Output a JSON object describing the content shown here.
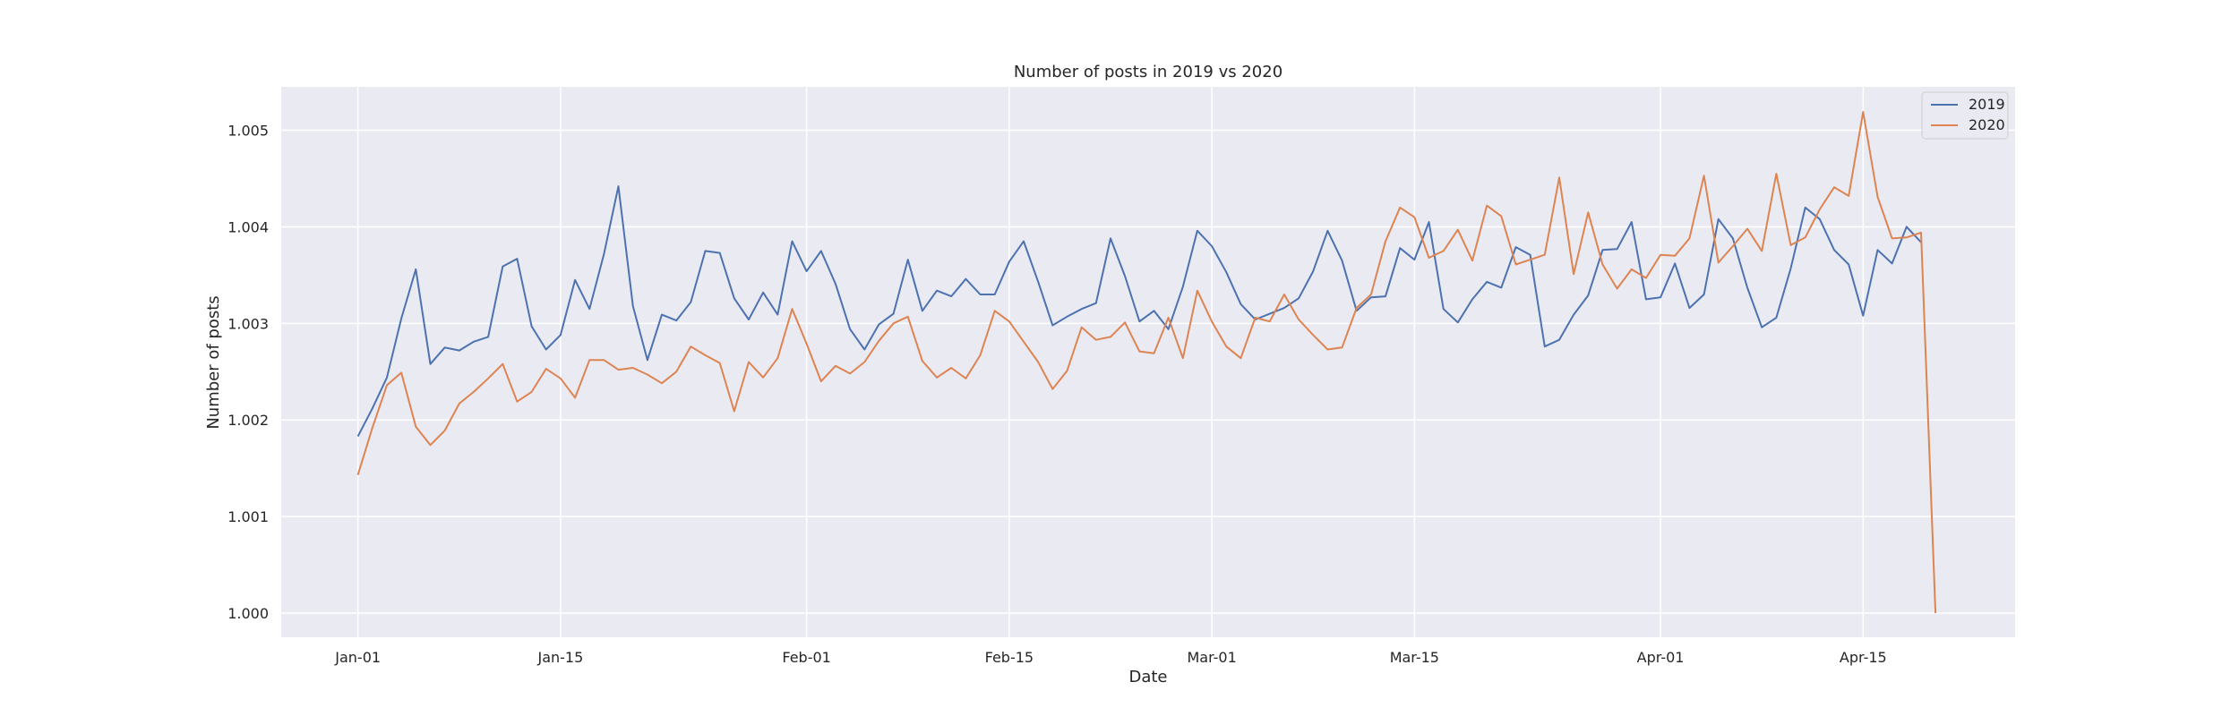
{
  "chart_data": {
    "type": "line",
    "title": "Number of posts in 2019 vs 2020",
    "xlabel": "Date",
    "ylabel": "Number of posts",
    "x_start": "Jan-01",
    "x_ticks": [
      {
        "day": 0,
        "label": "Jan-01"
      },
      {
        "day": 14,
        "label": "Jan-15"
      },
      {
        "day": 31,
        "label": "Feb-01"
      },
      {
        "day": 45,
        "label": "Feb-15"
      },
      {
        "day": 59,
        "label": "Mar-01"
      },
      {
        "day": 73,
        "label": "Mar-15"
      },
      {
        "day": 90,
        "label": "Apr-01"
      },
      {
        "day": 104,
        "label": "Apr-15"
      }
    ],
    "y_ticks": [
      "1.000",
      "1.001",
      "1.002",
      "1.003",
      "1.004",
      "1.005"
    ],
    "ylim": [
      0.99975,
      1.00545
    ],
    "xlim": [
      -5.3,
      114.5
    ],
    "grid": true,
    "legend_position": "top-right",
    "series": [
      {
        "name": "2019",
        "color": "#4c72b0",
        "values": [
          1.00183,
          1.00212,
          1.00244,
          1.00305,
          1.00356,
          1.00258,
          1.00275,
          1.00272,
          1.00281,
          1.00286,
          1.00359,
          1.00367,
          1.00297,
          1.00273,
          1.00288,
          1.00345,
          1.00315,
          1.00372,
          1.00442,
          1.00318,
          1.00262,
          1.00309,
          1.00303,
          1.00322,
          1.00375,
          1.00373,
          1.00326,
          1.00304,
          1.00332,
          1.00309,
          1.00385,
          1.00354,
          1.00375,
          1.00341,
          1.00294,
          1.00273,
          1.00299,
          1.0031,
          1.00366,
          1.00313,
          1.00334,
          1.00328,
          1.00346,
          1.0033,
          1.0033,
          1.00364,
          1.00385,
          1.00343,
          1.00298,
          1.00307,
          1.00315,
          1.00321,
          1.00388,
          1.00349,
          1.00302,
          1.00313,
          1.00294,
          1.00338,
          1.00396,
          1.0038,
          1.00353,
          1.0032,
          1.00304,
          1.0031,
          1.00316,
          1.00326,
          1.00354,
          1.00396,
          1.00365,
          1.00313,
          1.00327,
          1.00328,
          1.00378,
          1.00366,
          1.00405,
          1.00315,
          1.00301,
          1.00325,
          1.00343,
          1.00337,
          1.00379,
          1.00371,
          1.00276,
          1.00283,
          1.00309,
          1.00329,
          1.00376,
          1.00377,
          1.00405,
          1.00325,
          1.00327,
          1.00362,
          1.00316,
          1.0033,
          1.00408,
          1.00388,
          1.00337,
          1.00296,
          1.00306,
          1.00357,
          1.0042,
          1.00408,
          1.00376,
          1.00361,
          1.00308,
          1.00376,
          1.00362,
          1.004,
          1.00384
        ]
      },
      {
        "name": "2020",
        "color": "#dd8452",
        "values": [
          1.00143,
          1.00192,
          1.00236,
          1.00249,
          1.00193,
          1.00174,
          1.00189,
          1.00217,
          1.00229,
          1.00243,
          1.00258,
          1.00219,
          1.00229,
          1.00253,
          1.00243,
          1.00223,
          1.00262,
          1.00262,
          1.00252,
          1.00254,
          1.00247,
          1.00238,
          1.0025,
          1.00276,
          1.00267,
          1.00259,
          1.00209,
          1.0026,
          1.00244,
          1.00264,
          1.00315,
          1.00279,
          1.0024,
          1.00256,
          1.00248,
          1.0026,
          1.00282,
          1.003,
          1.00307,
          1.00261,
          1.00244,
          1.00254,
          1.00243,
          1.00267,
          1.00313,
          1.00302,
          1.00281,
          1.0026,
          1.00232,
          1.00251,
          1.00296,
          1.00283,
          1.00286,
          1.00301,
          1.00271,
          1.00269,
          1.00306,
          1.00264,
          1.00334,
          1.00302,
          1.00276,
          1.00264,
          1.00306,
          1.00302,
          1.0033,
          1.00304,
          1.00288,
          1.00273,
          1.00275,
          1.00316,
          1.0033,
          1.00385,
          1.0042,
          1.0041,
          1.00368,
          1.00375,
          1.00397,
          1.00365,
          1.00422,
          1.00411,
          1.00361,
          1.00366,
          1.00371,
          1.00451,
          1.00351,
          1.00415,
          1.00361,
          1.00336,
          1.00356,
          1.00347,
          1.00371,
          1.0037,
          1.00388,
          1.00453,
          1.00363,
          1.0038,
          1.00398,
          1.00375,
          1.00455,
          1.00381,
          1.00389,
          1.00418,
          1.00441,
          1.00432,
          1.00519,
          1.00431,
          1.00388,
          1.00389,
          1.00394,
          1.0
        ]
      }
    ]
  }
}
